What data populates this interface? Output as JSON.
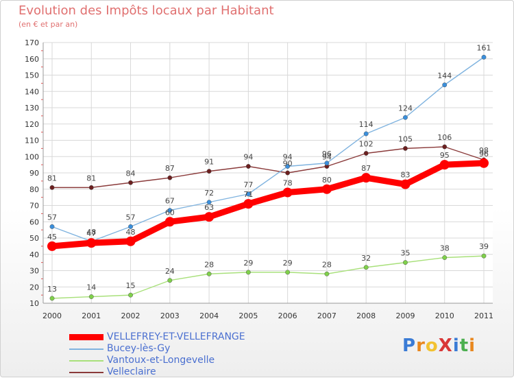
{
  "title": "Evolution des Impôts locaux par Habitant",
  "subtitle": "(en € et par an)",
  "logo": {
    "text": "ProXiti",
    "letter_colors": [
      "#3a7bd5",
      "#e8871e",
      "#f2c230",
      "#d93636",
      "#3a7bd5",
      "#4caf50",
      "#e8871e"
    ]
  },
  "chart_data": {
    "type": "line",
    "title": "Evolution des Impôts locaux par Habitant",
    "subtitle": "(en € et par an)",
    "x": [
      "2000",
      "2001",
      "2002",
      "2003",
      "2004",
      "2005",
      "2006",
      "2007",
      "2008",
      "2009",
      "2010",
      "2011"
    ],
    "ylim": [
      10,
      170
    ],
    "yticks": [
      10,
      20,
      30,
      40,
      50,
      60,
      70,
      80,
      90,
      100,
      110,
      120,
      130,
      140,
      150,
      160,
      170
    ],
    "grid": true,
    "legend_position": "bottom-left",
    "series": [
      {
        "name": "VELLEFREY-ET-VELLEFRANGE",
        "color": "#ff0000",
        "marker": "#ff0000",
        "width": 9,
        "values": [
          45,
          47,
          48,
          60,
          63,
          71,
          78,
          80,
          87,
          83,
          95,
          96
        ]
      },
      {
        "name": "Bucey-lès-Gy",
        "color": "#7fb3df",
        "marker": "#3a8fdc",
        "width": 1.4,
        "values": [
          57,
          48,
          57,
          67,
          72,
          77,
          94,
          96,
          114,
          124,
          144,
          161
        ]
      },
      {
        "name": "Vantoux-et-Longevelle",
        "color": "#a8e07a",
        "marker": "#7fd04a",
        "width": 1.4,
        "values": [
          13,
          14,
          15,
          24,
          28,
          29,
          29,
          28,
          32,
          35,
          38,
          39
        ]
      },
      {
        "name": "Velleclaire",
        "color": "#8a3a3a",
        "marker": "#6b1f1f",
        "width": 1.4,
        "values": [
          81,
          81,
          84,
          87,
          91,
          94,
          90,
          94,
          102,
          105,
          106,
          98
        ]
      }
    ]
  }
}
